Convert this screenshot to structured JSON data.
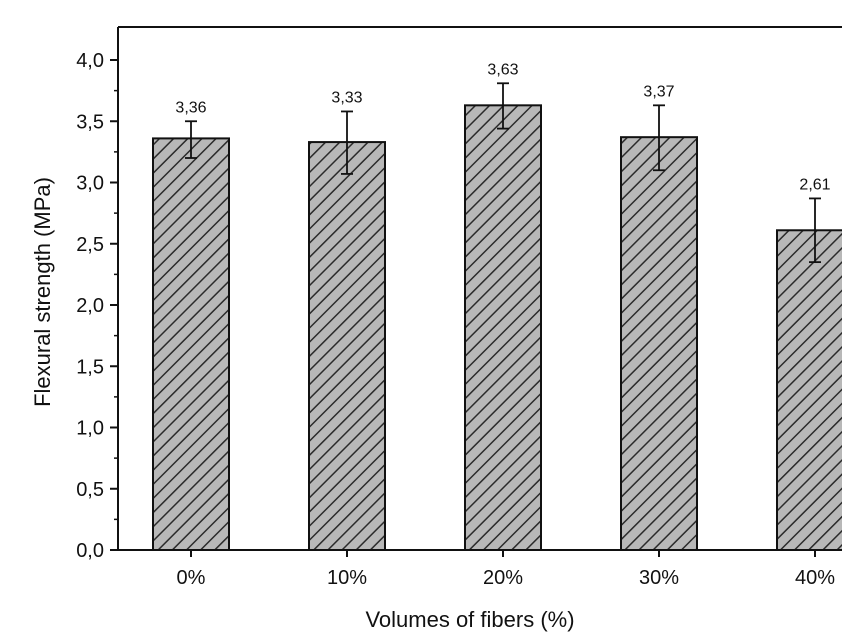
{
  "chart_data": {
    "type": "bar",
    "categories": [
      "0%",
      "10%",
      "20%",
      "30%",
      "40%"
    ],
    "values": [
      3.36,
      3.33,
      3.63,
      3.37,
      2.61
    ],
    "value_labels": [
      "3,36",
      "3,33",
      "3,63",
      "3,37",
      "2,61"
    ],
    "error_bars": {
      "upper": [
        3.5,
        3.58,
        3.81,
        3.63,
        2.87
      ],
      "lower": [
        3.2,
        3.07,
        3.44,
        3.1,
        2.35
      ]
    },
    "xlabel": "Volumes of fibers (%)",
    "ylabel": "Flexural strength (MPa)",
    "ylim": [
      0,
      4
    ],
    "yticks": [
      0,
      0.5,
      1,
      1.5,
      2,
      2.5,
      3,
      3.5,
      4
    ],
    "ytick_labels": [
      "0,0",
      "0,5",
      "1,0",
      "1,5",
      "2,0",
      "2,5",
      "3,0",
      "3,5",
      "4,0"
    ],
    "grid": false,
    "bar_fill": "hatched diagonal",
    "colors": {
      "bar_fill": "#b8b8b8",
      "hatch": "#2b2b2b",
      "outline": "#111111",
      "axis": "#111111"
    }
  }
}
